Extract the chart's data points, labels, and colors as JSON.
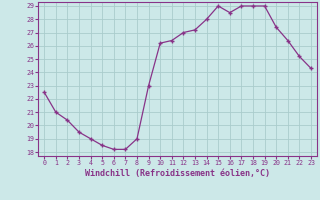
{
  "x": [
    0,
    1,
    2,
    3,
    4,
    5,
    6,
    7,
    8,
    9,
    10,
    11,
    12,
    13,
    14,
    15,
    16,
    17,
    18,
    19,
    20,
    21,
    22,
    23
  ],
  "y": [
    22.5,
    21.0,
    20.4,
    19.5,
    19.0,
    18.5,
    18.2,
    18.2,
    19.0,
    23.0,
    26.2,
    26.4,
    27.0,
    27.2,
    28.0,
    29.0,
    28.5,
    29.0,
    29.0,
    29.0,
    27.4,
    26.4,
    25.2,
    24.3
  ],
  "xlabel": "Windchill (Refroidissement éolien,°C)",
  "ylim_min": 17.7,
  "ylim_max": 29.3,
  "xlim_min": -0.5,
  "xlim_max": 23.5,
  "yticks": [
    18,
    19,
    20,
    21,
    22,
    23,
    24,
    25,
    26,
    27,
    28,
    29
  ],
  "xticks": [
    0,
    1,
    2,
    3,
    4,
    5,
    6,
    7,
    8,
    9,
    10,
    11,
    12,
    13,
    14,
    15,
    16,
    17,
    18,
    19,
    20,
    21,
    22,
    23
  ],
  "line_color": "#883388",
  "bg_color": "#cce8e8",
  "grid_color": "#aacccc",
  "text_color": "#883388"
}
